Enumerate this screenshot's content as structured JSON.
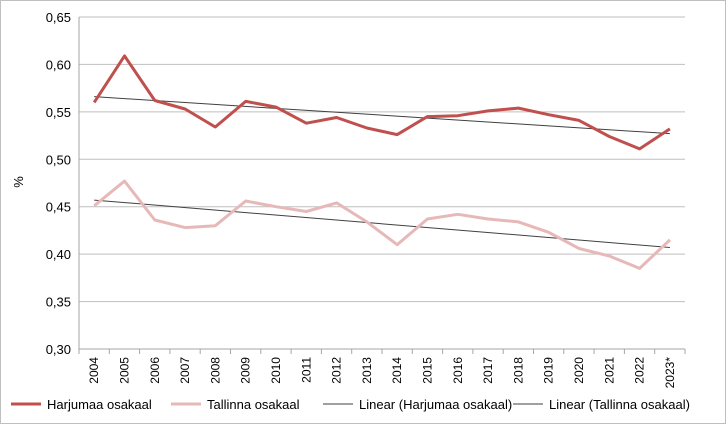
{
  "chart_data": {
    "type": "line",
    "ylabel": "%",
    "xlabel": "",
    "ylim": [
      0.3,
      0.65
    ],
    "yticks": [
      "0,30",
      "0,35",
      "0,40",
      "0,45",
      "0,50",
      "0,55",
      "0,60",
      "0,65"
    ],
    "categories": [
      "2004",
      "2005",
      "2006",
      "2007",
      "2008",
      "2009",
      "2010",
      "2011",
      "2012",
      "2013",
      "2014",
      "2015",
      "2016",
      "2017",
      "2018",
      "2019",
      "2020",
      "2021",
      "2022",
      "2023*"
    ],
    "grid": "horizontal",
    "legend_position": "bottom",
    "series": [
      {
        "name": "Harjumaa osakaal",
        "color": "#c0504d",
        "values": [
          0.56,
          0.609,
          0.562,
          0.553,
          0.534,
          0.561,
          0.555,
          0.538,
          0.544,
          0.533,
          0.526,
          0.545,
          0.546,
          0.551,
          0.554,
          0.547,
          0.541,
          0.524,
          0.511,
          0.532
        ]
      },
      {
        "name": "Tallinna osakaal",
        "color": "#e6b9b8",
        "values": [
          0.451,
          0.477,
          0.436,
          0.428,
          0.43,
          0.456,
          0.45,
          0.445,
          0.454,
          0.434,
          0.41,
          0.437,
          0.442,
          0.437,
          0.434,
          0.423,
          0.406,
          0.398,
          0.385,
          0.415
        ]
      }
    ],
    "trendlines": [
      {
        "name": "Linear (Harjumaa osakaal)",
        "color": "#404040",
        "start": 0.566,
        "end": 0.527
      },
      {
        "name": "Linear (Tallinna osakaal)",
        "color": "#404040",
        "start": 0.457,
        "end": 0.407
      }
    ]
  }
}
